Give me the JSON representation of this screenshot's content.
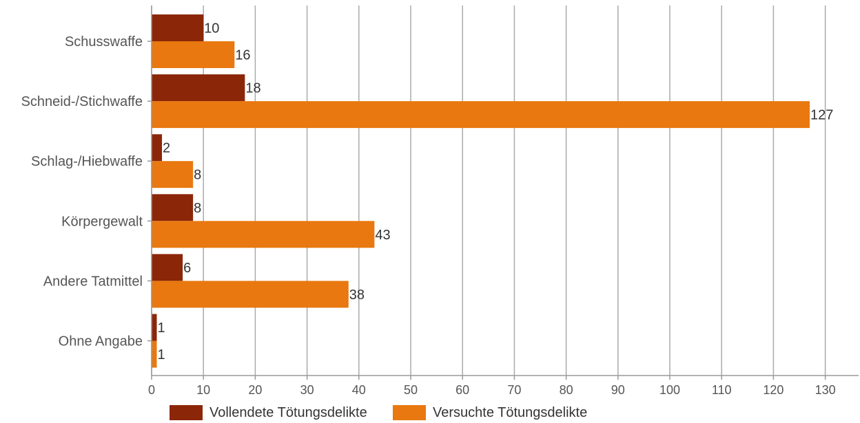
{
  "chart_data": {
    "type": "bar",
    "orientation": "horizontal",
    "categories": [
      "Schusswaffe",
      "Schneid-/Stichwaffe",
      "Schlag-/Hiebwaffe",
      "Körpergewalt",
      "Andere Tatmittel",
      "Ohne Angabe"
    ],
    "series": [
      {
        "name": "Vollendete Tötungsdelikte",
        "color": "#8B2608",
        "values": [
          10,
          18,
          2,
          8,
          6,
          1
        ]
      },
      {
        "name": "Versuchte Tötungsdelikte",
        "color": "#E8780F",
        "values": [
          16,
          127,
          8,
          43,
          38,
          1
        ]
      }
    ],
    "title": "",
    "xlabel": "",
    "ylabel": "",
    "xlim": [
      0,
      135
    ],
    "xticks": [
      0,
      10,
      20,
      30,
      40,
      50,
      60,
      70,
      80,
      90,
      100,
      110,
      120,
      130
    ],
    "grid": "vertical",
    "legend_position": "bottom"
  }
}
